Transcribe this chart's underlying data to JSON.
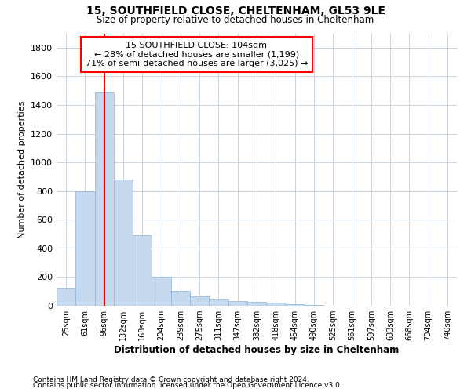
{
  "title": "15, SOUTHFIELD CLOSE, CHELTENHAM, GL53 9LE",
  "subtitle": "Size of property relative to detached houses in Cheltenham",
  "xlabel": "Distribution of detached houses by size in Cheltenham",
  "ylabel": "Number of detached properties",
  "categories": [
    "25sqm",
    "61sqm",
    "96sqm",
    "132sqm",
    "168sqm",
    "204sqm",
    "239sqm",
    "275sqm",
    "311sqm",
    "347sqm",
    "382sqm",
    "418sqm",
    "454sqm",
    "490sqm",
    "525sqm",
    "561sqm",
    "597sqm",
    "633sqm",
    "668sqm",
    "704sqm",
    "740sqm"
  ],
  "values": [
    125,
    800,
    1490,
    880,
    490,
    205,
    105,
    65,
    42,
    35,
    30,
    20,
    10,
    3,
    2,
    1,
    1,
    1,
    1,
    1,
    0
  ],
  "bar_color": "#c5d9ef",
  "bar_edge_color": "#8ab4d8",
  "ylim": [
    0,
    1900
  ],
  "yticks": [
    0,
    200,
    400,
    600,
    800,
    1000,
    1200,
    1400,
    1600,
    1800
  ],
  "red_line_x": 2.0,
  "annotation_line1": "15 SOUTHFIELD CLOSE: 104sqm",
  "annotation_line2": "← 28% of detached houses are smaller (1,199)",
  "annotation_line3": "71% of semi-detached houses are larger (3,025) →",
  "footnote1": "Contains HM Land Registry data © Crown copyright and database right 2024.",
  "footnote2": "Contains public sector information licensed under the Open Government Licence v3.0.",
  "background_color": "#ffffff",
  "grid_color": "#c8d4e0"
}
